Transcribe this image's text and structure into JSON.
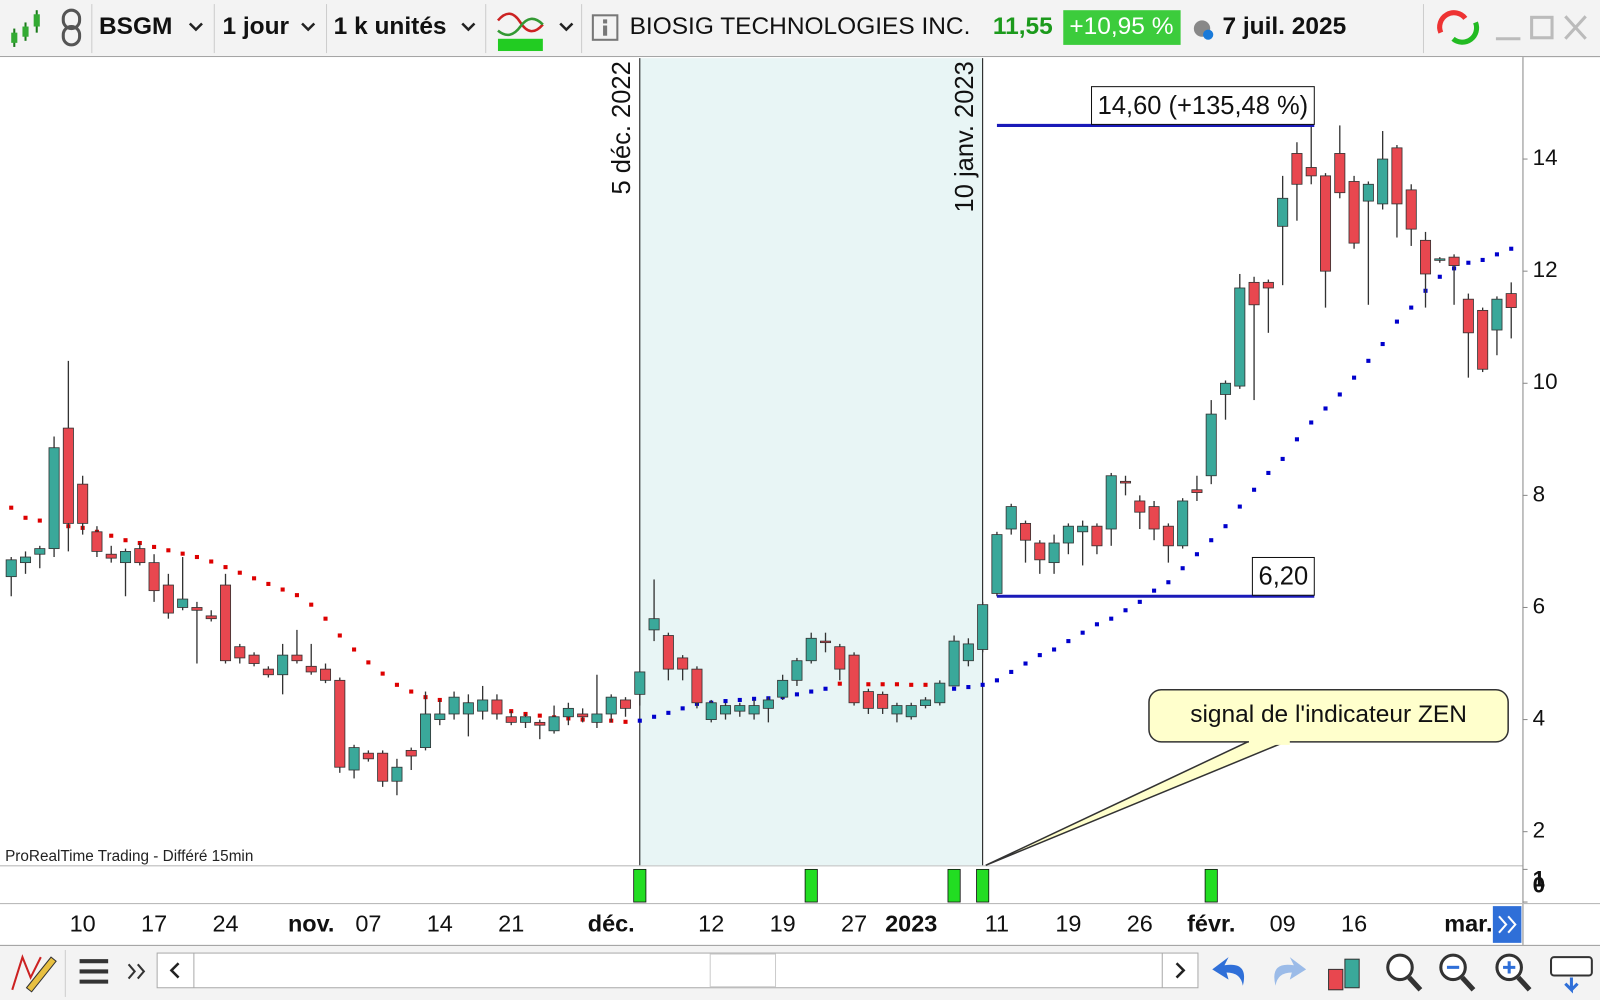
{
  "toolbar": {
    "symbol": "BSGM",
    "period": "1 jour",
    "units": "1 k unités",
    "name": "BIOSIG TECHNOLOGIES INC.",
    "price": "11,55",
    "change": "+10,95 %",
    "date": "7 juil. 2025"
  },
  "chart_data": {
    "type": "candlestick",
    "categories": [
      null,
      null,
      null,
      null,
      null,
      "10",
      null,
      null,
      null,
      null,
      "17",
      null,
      null,
      null,
      null,
      "24",
      null,
      null,
      null,
      null,
      null,
      "nov.",
      null,
      null,
      null,
      "07",
      null,
      null,
      null,
      null,
      "14",
      null,
      null,
      null,
      null,
      "21",
      null,
      null,
      null,
      null,
      null,
      null,
      "déc.",
      null,
      null,
      null,
      null,
      null,
      null,
      "12",
      null,
      null,
      null,
      null,
      "19",
      null,
      null,
      null,
      null,
      "27",
      null,
      null,
      null,
      "2023",
      null,
      null,
      null,
      null,
      null,
      "11",
      null,
      null,
      null,
      null,
      "19",
      null,
      null,
      null,
      null,
      "26",
      null,
      null,
      null,
      null,
      "févr.",
      null,
      null,
      null,
      null,
      "09",
      null,
      null,
      null,
      null,
      "16",
      null,
      null,
      null,
      null,
      null,
      null,
      null,
      "mar.",
      null,
      null,
      null
    ],
    "open": [
      6.55,
      6.8,
      6.95,
      7.05,
      9.2,
      8.2,
      7.35,
      6.95,
      6.8,
      7.05,
      6.8,
      6.4,
      6.0,
      6.0,
      5.85,
      6.4,
      5.3,
      5.15,
      4.9,
      4.8,
      5.15,
      4.95,
      4.9,
      4.7,
      3.1,
      3.4,
      3.4,
      2.9,
      3.45,
      3.5,
      4.0,
      4.1,
      4.1,
      4.15,
      4.35,
      4.05,
      3.95,
      3.95,
      3.8,
      4.05,
      4.1,
      3.95,
      4.1,
      4.35,
      4.45,
      5.6,
      5.5,
      5.1,
      4.9,
      4.0,
      4.1,
      4.15,
      4.1,
      4.2,
      4.4,
      4.7,
      5.05,
      5.4,
      5.3,
      5.15,
      4.5,
      4.45,
      4.1,
      4.05,
      4.25,
      4.3,
      4.6,
      5.05,
      5.25,
      6.25,
      7.4,
      7.5,
      7.15,
      6.8,
      7.15,
      7.35,
      7.45,
      7.4,
      8.25,
      7.9,
      7.8,
      7.45,
      7.1,
      8.1,
      8.35,
      9.8,
      9.95,
      11.8,
      11.8,
      12.8,
      14.1,
      13.85,
      13.7,
      14.1,
      13.6,
      13.25,
      13.2,
      14.2,
      13.45,
      12.55,
      12.2,
      12.25,
      11.5,
      11.3,
      10.95,
      11.6
    ],
    "high": [
      6.9,
      7.0,
      7.1,
      9.05,
      10.4,
      8.35,
      7.45,
      7.1,
      7.05,
      7.15,
      6.95,
      6.6,
      6.9,
      6.1,
      5.95,
      6.6,
      5.35,
      5.2,
      4.95,
      5.35,
      5.6,
      5.35,
      5.0,
      4.75,
      3.55,
      3.45,
      3.45,
      3.3,
      3.5,
      4.5,
      4.35,
      4.5,
      4.45,
      4.6,
      4.45,
      4.15,
      4.1,
      4.0,
      4.25,
      4.3,
      4.2,
      4.8,
      4.45,
      4.4,
      4.85,
      6.5,
      5.55,
      5.15,
      4.95,
      4.35,
      4.3,
      4.3,
      4.35,
      4.4,
      4.8,
      5.1,
      5.55,
      5.55,
      5.35,
      5.2,
      4.55,
      4.5,
      4.3,
      4.3,
      4.4,
      4.7,
      5.5,
      5.45,
      6.1,
      7.35,
      7.85,
      7.55,
      7.2,
      7.3,
      7.5,
      7.55,
      7.5,
      8.4,
      8.35,
      8.0,
      7.9,
      7.5,
      7.95,
      8.35,
      9.7,
      10.05,
      11.95,
      11.9,
      11.85,
      13.7,
      14.3,
      14.6,
      13.75,
      14.6,
      13.7,
      13.6,
      14.5,
      14.25,
      13.55,
      12.7,
      12.25,
      12.3,
      11.6,
      11.35,
      11.55,
      11.8
    ],
    "low": [
      6.2,
      6.6,
      6.7,
      6.9,
      7.0,
      7.3,
      6.9,
      6.8,
      6.2,
      6.75,
      6.1,
      5.8,
      5.95,
      5.0,
      5.75,
      5.0,
      5.0,
      4.95,
      4.75,
      4.45,
      5.0,
      4.8,
      4.65,
      3.05,
      2.95,
      3.25,
      2.8,
      2.65,
      3.1,
      3.45,
      3.9,
      4.0,
      3.7,
      4.0,
      4.0,
      3.9,
      3.85,
      3.65,
      3.75,
      3.9,
      3.95,
      3.85,
      3.95,
      4.05,
      4.25,
      5.4,
      4.7,
      4.7,
      4.2,
      3.95,
      4.0,
      4.05,
      4.0,
      3.95,
      4.35,
      4.6,
      5.0,
      5.2,
      4.7,
      4.25,
      4.1,
      4.1,
      3.95,
      4.0,
      4.2,
      4.25,
      4.6,
      4.95,
      5.2,
      6.2,
      7.3,
      6.8,
      6.6,
      6.6,
      6.95,
      6.75,
      6.95,
      7.1,
      8.0,
      7.4,
      7.2,
      6.8,
      7.05,
      7.9,
      8.2,
      9.35,
      9.9,
      9.7,
      10.9,
      11.75,
      12.9,
      13.55,
      11.35,
      13.3,
      12.4,
      11.4,
      13.1,
      12.6,
      12.45,
      11.35,
      12.15,
      11.4,
      10.1,
      10.2,
      10.5,
      10.8
    ],
    "close": [
      6.85,
      6.9,
      7.05,
      8.85,
      7.5,
      7.5,
      7.0,
      6.88,
      7.0,
      6.8,
      6.3,
      5.9,
      6.15,
      5.95,
      5.8,
      5.05,
      5.1,
      5.0,
      4.8,
      5.15,
      5.05,
      4.85,
      4.7,
      3.15,
      3.5,
      3.3,
      2.9,
      3.15,
      3.35,
      4.1,
      4.1,
      4.4,
      4.3,
      4.35,
      4.1,
      3.95,
      4.05,
      3.9,
      4.05,
      4.2,
      4.05,
      4.1,
      4.4,
      4.2,
      4.85,
      5.8,
      4.9,
      4.9,
      4.3,
      4.3,
      4.25,
      4.25,
      4.25,
      4.35,
      4.7,
      5.05,
      5.45,
      5.38,
      4.9,
      4.3,
      4.2,
      4.2,
      4.25,
      4.25,
      4.35,
      4.65,
      5.4,
      5.35,
      6.05,
      7.3,
      7.8,
      7.2,
      6.85,
      7.15,
      7.45,
      7.45,
      7.1,
      8.35,
      8.22,
      7.7,
      7.4,
      7.1,
      7.9,
      8.05,
      9.45,
      10.0,
      11.7,
      11.4,
      11.7,
      13.3,
      13.55,
      13.7,
      12.0,
      13.4,
      12.5,
      13.55,
      14.0,
      13.2,
      12.75,
      11.95,
      12.22,
      12.1,
      10.9,
      10.25,
      11.5,
      11.35
    ],
    "up_color": "#3aa89a",
    "down_color": "#e8474f",
    "indicator": [
      {
        "color": "#dd0000",
        "values": [
          7.78,
          7.6,
          7.55,
          null,
          7.45,
          7.42,
          7.35,
          7.28,
          7.2,
          7.15,
          7.08,
          7.02,
          6.96,
          6.9,
          6.82,
          6.72,
          6.62,
          6.52,
          6.42,
          6.32,
          6.22,
          6.05,
          5.8,
          5.5,
          5.25,
          5.02,
          4.82,
          4.62,
          4.5,
          4.4,
          4.35,
          4.3,
          4.27,
          4.24,
          4.2,
          4.15,
          4.1,
          4.07,
          4.04,
          4.02,
          4.0,
          3.99,
          3.98,
          3.96,
          null,
          null,
          null,
          null,
          null,
          null,
          null,
          null,
          null,
          null,
          null,
          null,
          null,
          null,
          4.64,
          4.64,
          4.63,
          4.63,
          4.63,
          4.62,
          4.62,
          4.5,
          null,
          null,
          null,
          null,
          null,
          null,
          null,
          null,
          null,
          null,
          null,
          null,
          null,
          null,
          null,
          null,
          null,
          null,
          null,
          null,
          null,
          null,
          null,
          null,
          null,
          null,
          null,
          null,
          null,
          null,
          null,
          null,
          null,
          null,
          null,
          null,
          null,
          null,
          null,
          null
        ]
      },
      {
        "color": "#0000cc",
        "values": [
          null,
          null,
          null,
          7.5,
          null,
          null,
          null,
          null,
          null,
          null,
          null,
          null,
          null,
          null,
          null,
          null,
          null,
          null,
          null,
          null,
          null,
          null,
          null,
          null,
          null,
          null,
          null,
          null,
          null,
          null,
          null,
          null,
          null,
          null,
          null,
          null,
          null,
          null,
          null,
          null,
          null,
          null,
          null,
          null,
          3.98,
          4.05,
          4.12,
          4.2,
          4.28,
          4.3,
          4.33,
          4.35,
          4.37,
          4.38,
          4.4,
          4.45,
          4.5,
          4.55,
          null,
          null,
          null,
          null,
          null,
          null,
          null,
          null,
          4.55,
          4.58,
          4.62,
          4.7,
          4.85,
          5.0,
          5.15,
          5.25,
          5.4,
          5.55,
          5.7,
          5.8,
          5.95,
          6.1,
          6.3,
          6.45,
          6.7,
          6.95,
          7.2,
          7.45,
          7.8,
          8.1,
          8.4,
          8.65,
          9.0,
          9.3,
          9.55,
          9.8,
          10.1,
          10.4,
          10.7,
          11.1,
          11.35,
          11.65,
          11.9,
          12.05,
          12.15,
          12.2,
          12.3,
          12.4
        ]
      }
    ],
    "ylim": [
      1.4,
      15.8
    ],
    "yticks": [
      2,
      4,
      6,
      8,
      10,
      12,
      14
    ],
    "signal": {
      "color": "#22dd22",
      "ylim": [
        0,
        1
      ],
      "yticks": [
        1,
        0
      ],
      "values": [
        0,
        0,
        0,
        0,
        0,
        0,
        0,
        0,
        0,
        0,
        0,
        0,
        0,
        0,
        0,
        0,
        0,
        0,
        0,
        0,
        0,
        0,
        0,
        0,
        0,
        0,
        0,
        0,
        0,
        0,
        0,
        0,
        0,
        0,
        0,
        0,
        0,
        0,
        0,
        0,
        0,
        0,
        0,
        0,
        1,
        0,
        0,
        0,
        0,
        0,
        0,
        0,
        0,
        0,
        0,
        0,
        1,
        0,
        0,
        0,
        0,
        0,
        0,
        0,
        0,
        0,
        1,
        0,
        1,
        0,
        0,
        0,
        0,
        0,
        0,
        0,
        0,
        0,
        0,
        0,
        0,
        0,
        0,
        0,
        1,
        0,
        0,
        0,
        0,
        0,
        0,
        0,
        0,
        0,
        0,
        0,
        0,
        0,
        0,
        0,
        0,
        0,
        0,
        0,
        0,
        0
      ]
    },
    "vlines": [
      {
        "index": 44,
        "label": "5 déc. 2022"
      },
      {
        "index": 68,
        "label": "10 janv. 2023"
      }
    ],
    "hlines": [
      {
        "value": 14.6,
        "label": "14,60 (+135,48 %)",
        "from": 69,
        "to": 93
      },
      {
        "value": 6.2,
        "label": "6,20",
        "from": 69,
        "to": 93
      }
    ],
    "callout": "signal de l'indicateur ZEN",
    "watermark": "ProRealTime Trading - Différé 15min"
  }
}
